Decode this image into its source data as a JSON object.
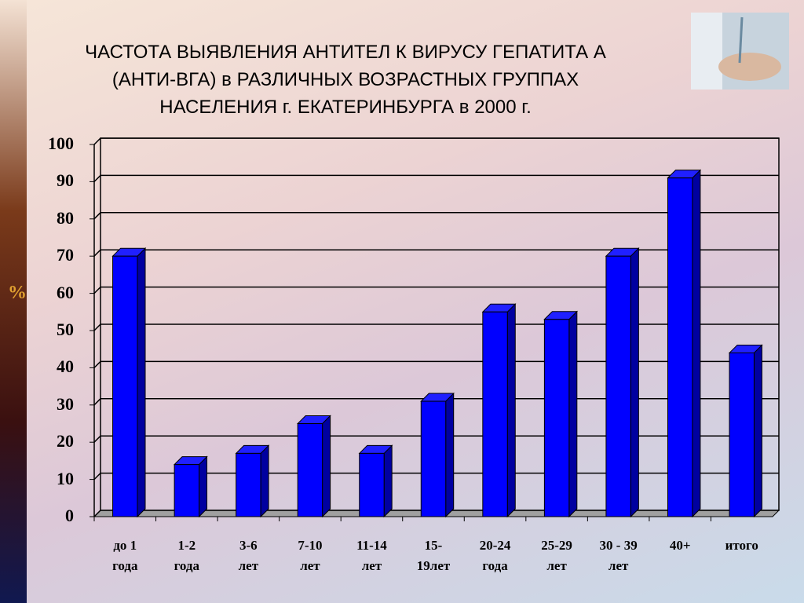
{
  "chart_data": {
    "type": "bar",
    "title": "ЧАСТОТА ВЫЯВЛЕНИЯ АНТИТЕЛ К ВИРУСУ ГЕПАТИТА А\n(АНТИ-ВГА) в РАЗЛИЧНЫХ ВОЗРАСТНЫХ ГРУППАХ\nНАСЕЛЕНИЯ г. ЕКАТЕРИНБУРГА в 2000 г.",
    "y_label": "%",
    "categories": [
      "до 1\nгода",
      "1-2\nгода",
      "3-6\nлет",
      "7-10\nлет",
      "11-14\nлет",
      "15-\n19лет",
      "20-24\nгода",
      "25-29\nлет",
      "30 - 39\nлет",
      "40+",
      "итого"
    ],
    "values": [
      70,
      14,
      17,
      25,
      17,
      31,
      55,
      53,
      70,
      91,
      44
    ],
    "color": "#0000ff",
    "ylim": [
      0,
      100
    ],
    "yticks": [
      0,
      10,
      20,
      30,
      40,
      50,
      60,
      70,
      80,
      90,
      100
    ],
    "grid": true
  }
}
